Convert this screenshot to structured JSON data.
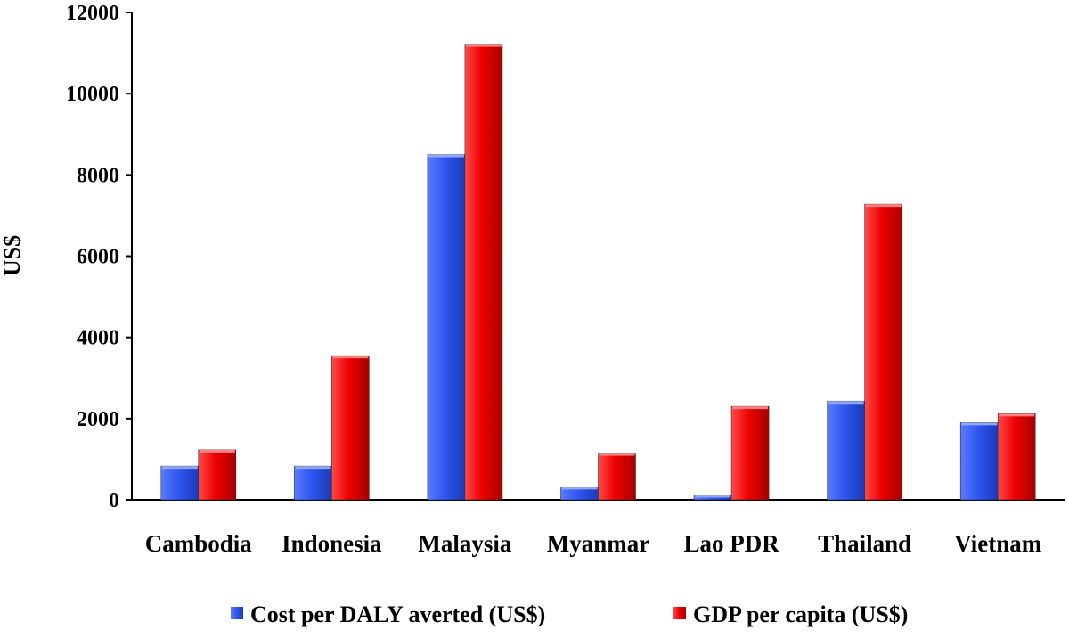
{
  "chart_data": {
    "type": "bar",
    "categories": [
      "Cambodia",
      "Indonesia",
      "Malaysia",
      "Myanmar",
      "Lao PDR",
      "Thailand",
      "Vietnam"
    ],
    "series": [
      {
        "name": "Cost per DALY averted (US$)",
        "color": "#2f57f0",
        "values": [
          830,
          830,
          8500,
          320,
          120,
          2430,
          1900
        ]
      },
      {
        "name": "GDP per capita (US$)",
        "color": "#ee0000",
        "values": [
          1230,
          3550,
          11220,
          1150,
          2300,
          7280,
          2120
        ]
      }
    ],
    "title": "",
    "xlabel": "",
    "ylabel": "US$",
    "ylim": [
      0,
      12000
    ],
    "yticks": [
      "0",
      "2000",
      "4000",
      "6000",
      "8000",
      "10000",
      "12000"
    ],
    "grid": false,
    "legend_position": "bottom"
  }
}
